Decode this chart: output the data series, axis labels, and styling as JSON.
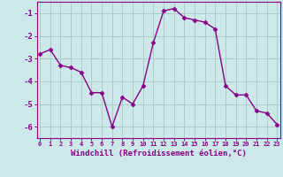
{
  "hours": [
    0,
    1,
    2,
    3,
    4,
    5,
    6,
    7,
    8,
    9,
    10,
    11,
    12,
    13,
    14,
    15,
    16,
    17,
    18,
    19,
    20,
    21,
    22,
    23
  ],
  "values": [
    -2.8,
    -2.6,
    -3.3,
    -3.4,
    -3.6,
    -4.5,
    -4.5,
    -6.0,
    -4.7,
    -5.0,
    -4.2,
    -2.3,
    -0.9,
    -0.8,
    -1.2,
    -1.3,
    -1.4,
    -1.7,
    -4.2,
    -4.6,
    -4.6,
    -5.3,
    -5.4,
    -5.9
  ],
  "line_color": "#880088",
  "marker": "D",
  "markersize": 2.5,
  "linewidth": 1.0,
  "bg_color": "#cce8e8",
  "grid_color": "#aacccc",
  "xlabel": "Windchill (Refroidissement éolien,°C)",
  "xlabel_color": "#880088",
  "tick_color": "#880088",
  "ylim": [
    -6.5,
    -0.5
  ],
  "yticks": [
    -6,
    -5,
    -4,
    -3,
    -2,
    -1
  ],
  "spine_color": "#880088",
  "xlim": [
    -0.3,
    23.3
  ],
  "xtick_fontsize": 5.0,
  "ytick_fontsize": 6.5,
  "xlabel_fontsize": 6.5
}
